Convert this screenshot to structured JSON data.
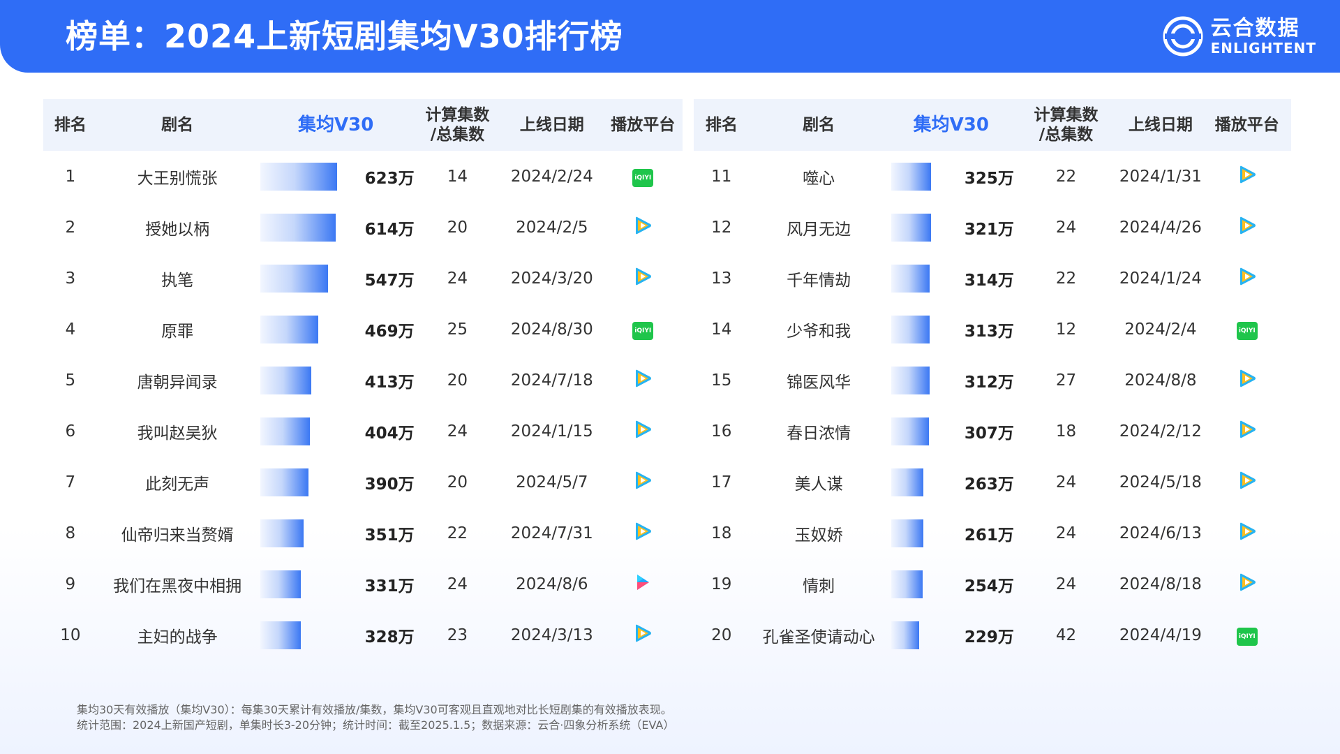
{
  "header": {
    "title": "榜单：2024上新短剧集均V30排行榜",
    "logo_cn": "云合数据",
    "logo_en": "ENLIGHTENT"
  },
  "columns": {
    "rank": "排名",
    "name": "剧名",
    "v30": "集均V30",
    "eps_line1": "计算集数",
    "eps_line2": "/总集数",
    "date": "上线日期",
    "platform": "播放平台"
  },
  "max_value": 623,
  "left_rows": [
    {
      "rank": "1",
      "name": "大王别慌张",
      "value": 623,
      "value_label": "623万",
      "eps": "14",
      "date": "2024/2/24",
      "platform": "iqiyi"
    },
    {
      "rank": "2",
      "name": "授她以柄",
      "value": 614,
      "value_label": "614万",
      "eps": "20",
      "date": "2024/2/5",
      "platform": "tencent"
    },
    {
      "rank": "3",
      "name": "执笔",
      "value": 547,
      "value_label": "547万",
      "eps": "24",
      "date": "2024/3/20",
      "platform": "tencent"
    },
    {
      "rank": "4",
      "name": "原罪",
      "value": 469,
      "value_label": "469万",
      "eps": "25",
      "date": "2024/8/30",
      "platform": "iqiyi"
    },
    {
      "rank": "5",
      "name": "唐朝异闻录",
      "value": 413,
      "value_label": "413万",
      "eps": "20",
      "date": "2024/7/18",
      "platform": "tencent"
    },
    {
      "rank": "6",
      "name": "我叫赵吴狄",
      "value": 404,
      "value_label": "404万",
      "eps": "24",
      "date": "2024/1/15",
      "platform": "tencent"
    },
    {
      "rank": "7",
      "name": "此刻无声",
      "value": 390,
      "value_label": "390万",
      "eps": "20",
      "date": "2024/5/7",
      "platform": "tencent"
    },
    {
      "rank": "8",
      "name": "仙帝归来当赘婿",
      "value": 351,
      "value_label": "351万",
      "eps": "22",
      "date": "2024/7/31",
      "platform": "tencent"
    },
    {
      "rank": "9",
      "name": "我们在黑夜中相拥",
      "value": 331,
      "value_label": "331万",
      "eps": "24",
      "date": "2024/8/6",
      "platform": "youku"
    },
    {
      "rank": "10",
      "name": "主妇的战争",
      "value": 328,
      "value_label": "328万",
      "eps": "23",
      "date": "2024/3/13",
      "platform": "tencent"
    }
  ],
  "right_rows": [
    {
      "rank": "11",
      "name": "噬心",
      "value": 325,
      "value_label": "325万",
      "eps": "22",
      "date": "2024/1/31",
      "platform": "tencent"
    },
    {
      "rank": "12",
      "name": "风月无边",
      "value": 321,
      "value_label": "321万",
      "eps": "24",
      "date": "2024/4/26",
      "platform": "tencent"
    },
    {
      "rank": "13",
      "name": "千年情劫",
      "value": 314,
      "value_label": "314万",
      "eps": "22",
      "date": "2024/1/24",
      "platform": "tencent"
    },
    {
      "rank": "14",
      "name": "少爷和我",
      "value": 313,
      "value_label": "313万",
      "eps": "12",
      "date": "2024/2/4",
      "platform": "iqiyi"
    },
    {
      "rank": "15",
      "name": "锦医风华",
      "value": 312,
      "value_label": "312万",
      "eps": "27",
      "date": "2024/8/8",
      "platform": "tencent"
    },
    {
      "rank": "16",
      "name": "春日浓情",
      "value": 307,
      "value_label": "307万",
      "eps": "18",
      "date": "2024/2/12",
      "platform": "tencent"
    },
    {
      "rank": "17",
      "name": "美人谋",
      "value": 263,
      "value_label": "263万",
      "eps": "24",
      "date": "2024/5/18",
      "platform": "tencent"
    },
    {
      "rank": "18",
      "name": "玉奴娇",
      "value": 261,
      "value_label": "261万",
      "eps": "24",
      "date": "2024/6/13",
      "platform": "tencent"
    },
    {
      "rank": "19",
      "name": "情刺",
      "value": 254,
      "value_label": "254万",
      "eps": "24",
      "date": "2024/8/18",
      "platform": "tencent"
    },
    {
      "rank": "20",
      "name": "孔雀圣使请动心",
      "value": 229,
      "value_label": "229万",
      "eps": "42",
      "date": "2024/4/19",
      "platform": "iqiyi"
    }
  ],
  "platform_labels": {
    "iqiyi": "iQIYI"
  },
  "footer": {
    "line1": "集均30天有效播放（集均V30）：每集30天累计有效播放/集数，集均V30可客观且直观地对比长短剧集的有效播放表现。",
    "line2": "统计范围：2024上新国产短剧，单集时长3-20分钟；统计时间：截至2025.1.5；数据来源：云合·四象分析系统（EVA）"
  },
  "colors": {
    "brand": "#2f6df6",
    "header_bg": "#eef3fc",
    "iqiyi": "#1fc54b"
  }
}
